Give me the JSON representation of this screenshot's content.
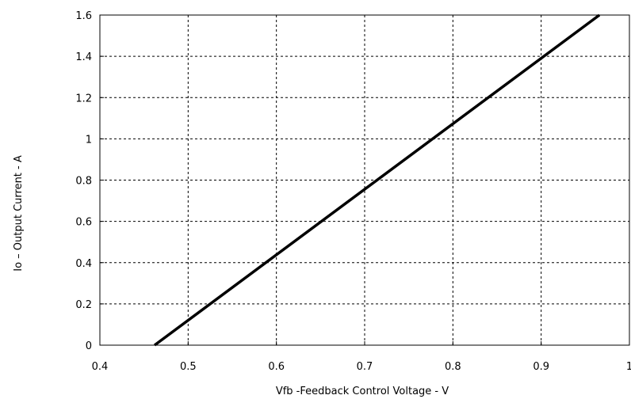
{
  "chart_data": {
    "type": "line",
    "title": "",
    "xlabel": "Vfb -Feedback Control Voltage - V",
    "ylabel": "Io – Output Current - A",
    "xlim": [
      0.4,
      1.0
    ],
    "ylim": [
      0,
      1.6
    ],
    "xticks": [
      0.4,
      0.5,
      0.6,
      0.7,
      0.8,
      0.9,
      1.0
    ],
    "xtick_labels": [
      "0.4",
      "0.5",
      "0.6",
      "0.7",
      "0.8",
      "0.9",
      "1"
    ],
    "yticks": [
      0,
      0.2,
      0.4,
      0.6,
      0.8,
      1.0,
      1.2,
      1.4,
      1.6
    ],
    "ytick_labels": [
      "0",
      "0.2",
      "0.4",
      "0.6",
      "0.8",
      "1",
      "1.2",
      "1.4",
      "1.6"
    ],
    "grid": true,
    "line_color": "#000000",
    "series": [
      {
        "x": [
          0.462,
          0.966
        ],
        "y": [
          0.0,
          1.6
        ]
      }
    ]
  }
}
